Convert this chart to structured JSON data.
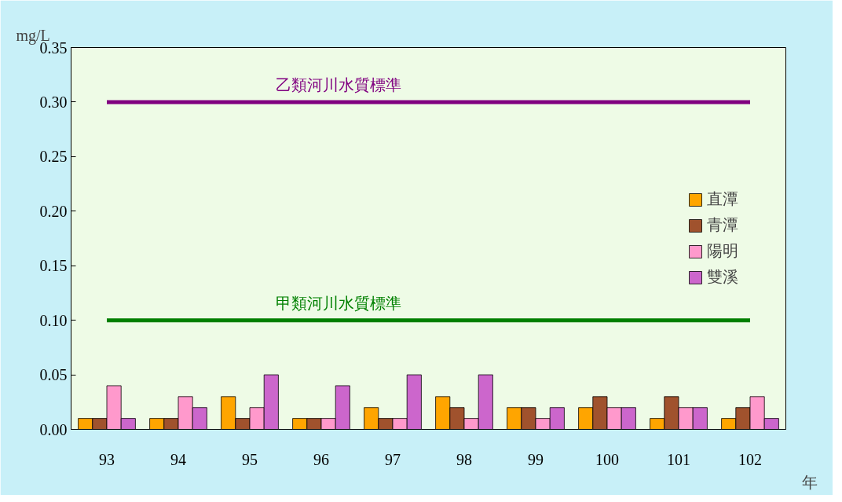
{
  "chart_data": {
    "type": "bar",
    "ylabel": "mg/L",
    "xlabel": "年",
    "categories": [
      "93",
      "94",
      "95",
      "96",
      "97",
      "98",
      "99",
      "100",
      "101",
      "102"
    ],
    "series": [
      {
        "name": "直潭",
        "color": "#ffa500",
        "values": [
          0.01,
          0.01,
          0.03,
          0.01,
          0.02,
          0.03,
          0.02,
          0.02,
          0.01,
          0.01
        ]
      },
      {
        "name": "青潭",
        "color": "#a0522d",
        "values": [
          0.01,
          0.01,
          0.01,
          0.01,
          0.01,
          0.02,
          0.02,
          0.03,
          0.03,
          0.02
        ]
      },
      {
        "name": "陽明",
        "color": "#ff99cc",
        "values": [
          0.04,
          0.03,
          0.02,
          0.01,
          0.01,
          0.01,
          0.01,
          0.02,
          0.02,
          0.03
        ]
      },
      {
        "name": "雙溪",
        "color": "#cc66cc",
        "values": [
          0.01,
          0.02,
          0.05,
          0.04,
          0.05,
          0.05,
          0.02,
          0.02,
          0.02,
          0.01
        ]
      }
    ],
    "ylim": [
      0,
      0.35
    ],
    "yticks": [
      {
        "value": 0,
        "label": "0.00"
      },
      {
        "value": 0.05,
        "label": "0.05"
      },
      {
        "value": 0.1,
        "label": "0.10"
      },
      {
        "value": 0.15,
        "label": "0.15"
      },
      {
        "value": 0.2,
        "label": "0.20"
      },
      {
        "value": 0.25,
        "label": "0.25"
      },
      {
        "value": 0.3,
        "label": "0.30"
      },
      {
        "value": 0.35,
        "label": "0.35"
      }
    ],
    "ref_lines": [
      {
        "axis": "y",
        "value": 0.3,
        "label": "乙類河川水質標準",
        "color": "#800080"
      },
      {
        "axis": "y",
        "value": 0.1,
        "label": "甲類河川水質標準",
        "color": "#008000"
      }
    ],
    "grid": false,
    "legend": "right"
  }
}
